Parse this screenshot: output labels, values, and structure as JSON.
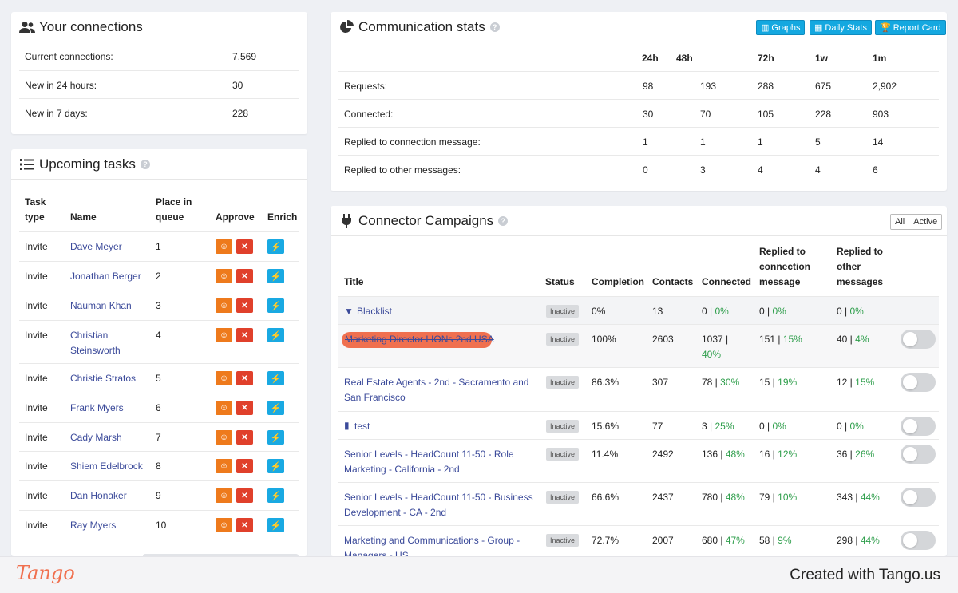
{
  "connections": {
    "title": "Your connections",
    "rows": [
      {
        "label": "Current connections:",
        "value": "7,569"
      },
      {
        "label": "New in 24 hours:",
        "value": "30"
      },
      {
        "label": "New in 7 days:",
        "value": "228"
      }
    ]
  },
  "tasks": {
    "title": "Upcoming tasks",
    "headers": {
      "type1": "Task",
      "type2": "type",
      "name": "Name",
      "queue1": "Place in",
      "queue2": "queue",
      "approve": "Approve",
      "enrich": "Enrich"
    },
    "rows": [
      {
        "type": "Invite",
        "name1": "Dave Meyer",
        "name2": "",
        "place": "1"
      },
      {
        "type": "Invite",
        "name1": "Jonathan Berger",
        "name2": "",
        "place": "2"
      },
      {
        "type": "Invite",
        "name1": "Nauman Khan",
        "name2": "",
        "place": "3"
      },
      {
        "type": "Invite",
        "name1": "Christian",
        "name2": "Steinsworth",
        "place": "4"
      },
      {
        "type": "Invite",
        "name1": "Christie Stratos",
        "name2": "",
        "place": "5"
      },
      {
        "type": "Invite",
        "name1": "Frank Myers",
        "name2": "",
        "place": "6"
      },
      {
        "type": "Invite",
        "name1": "Cady Marsh",
        "name2": "",
        "place": "7"
      },
      {
        "type": "Invite",
        "name1": "Shiem Edelbrock",
        "name2": "",
        "place": "8"
      },
      {
        "type": "Invite",
        "name1": "Dan Honaker",
        "name2": "",
        "place": "9"
      },
      {
        "type": "Invite",
        "name1": "Ray Myers",
        "name2": "",
        "place": "10"
      }
    ]
  },
  "stats": {
    "title": "Communication stats",
    "buttons": {
      "graphs": "Graphs",
      "daily": "Daily Stats",
      "report": "Report Card"
    },
    "periods": [
      "24h",
      "48h",
      "72h",
      "1w",
      "1m"
    ],
    "rows": [
      {
        "label": "Requests:",
        "values": [
          "98",
          "193",
          "288",
          "675",
          "2,902"
        ]
      },
      {
        "label": "Connected:",
        "values": [
          "30",
          "70",
          "105",
          "228",
          "903"
        ]
      },
      {
        "label": "Replied to connection message:",
        "values": [
          "1",
          "1",
          "1",
          "5",
          "14"
        ]
      },
      {
        "label": "Replied to other messages:",
        "values": [
          "0",
          "3",
          "4",
          "4",
          "6"
        ]
      }
    ]
  },
  "campaigns": {
    "title": "Connector Campaigns",
    "filter": {
      "all": "All",
      "active": "Active"
    },
    "headers": {
      "title": "Title",
      "status": "Status",
      "completion": "Completion",
      "contacts": "Contacts",
      "connected": "Connected",
      "rcm1": "Replied to",
      "rcm2": "connection",
      "rcm3": "message",
      "rom1": "Replied to",
      "rom2": "other",
      "rom3": "messages"
    },
    "rows": [
      {
        "t1": "Blacklist",
        "t2": "",
        "icon": "filter-icon",
        "status": "Inactive",
        "completion": "0%",
        "contacts": "13",
        "conn": "0 |",
        "connPct": "0%",
        "conn2": "",
        "rcm": "0 |",
        "rcmPct": "0%",
        "rom": "0 |",
        "romPct": "0%",
        "toggle": false
      },
      {
        "t1": "Marketing Director LIONs 2nd USA",
        "t2": "",
        "icon": "",
        "status": "Inactive",
        "completion": "100%",
        "contacts": "2603",
        "conn": "1037 |",
        "connPct": "",
        "conn2": "40%",
        "rcm": "151 |",
        "rcmPct": "15%",
        "rom": "40 |",
        "romPct": "4%",
        "toggle": true
      },
      {
        "t1": "Real Estate Agents - 2nd - Sacramento and",
        "t2": "San Francisco",
        "icon": "",
        "status": "Inactive",
        "completion": "86.3%",
        "contacts": "307",
        "conn": "78 |",
        "connPct": "30%",
        "conn2": "",
        "rcm": "15 |",
        "rcmPct": "19%",
        "rom": "12 |",
        "romPct": "15%",
        "toggle": true
      },
      {
        "t1": "test",
        "t2": "",
        "icon": "file-icon",
        "status": "Inactive",
        "completion": "15.6%",
        "contacts": "77",
        "conn": "3 |",
        "connPct": "25%",
        "conn2": "",
        "rcm": "0 |",
        "rcmPct": "0%",
        "rom": "0 |",
        "romPct": "0%",
        "toggle": true
      },
      {
        "t1": "Senior Levels - HeadCount 11-50 - Role",
        "t2": "Marketing - California - 2nd",
        "icon": "",
        "status": "Inactive",
        "completion": "11.4%",
        "contacts": "2492",
        "conn": "136 |",
        "connPct": "48%",
        "conn2": "",
        "rcm": "16 |",
        "rcmPct": "12%",
        "rom": "36 |",
        "romPct": "26%",
        "toggle": true
      },
      {
        "t1": "Senior Levels - HeadCount 11-50 - Business",
        "t2": "Development - CA - 2nd",
        "icon": "",
        "status": "Inactive",
        "completion": "66.6%",
        "contacts": "2437",
        "conn": "780 |",
        "connPct": "48%",
        "conn2": "",
        "rcm": "79 |",
        "rcmPct": "10%",
        "rom": "343 |",
        "romPct": "44%",
        "toggle": true
      },
      {
        "t1": "Marketing and Communications - Group -",
        "t2": "Managers - US",
        "icon": "",
        "status": "Inactive",
        "completion": "72.7%",
        "contacts": "2007",
        "conn": "680 |",
        "connPct": "47%",
        "conn2": "",
        "rcm": "58 |",
        "rcmPct": "9%",
        "rom": "298 |",
        "romPct": "44%",
        "toggle": true
      }
    ]
  },
  "footer": {
    "logo": "Tango",
    "credit": "Created with Tango.us"
  }
}
